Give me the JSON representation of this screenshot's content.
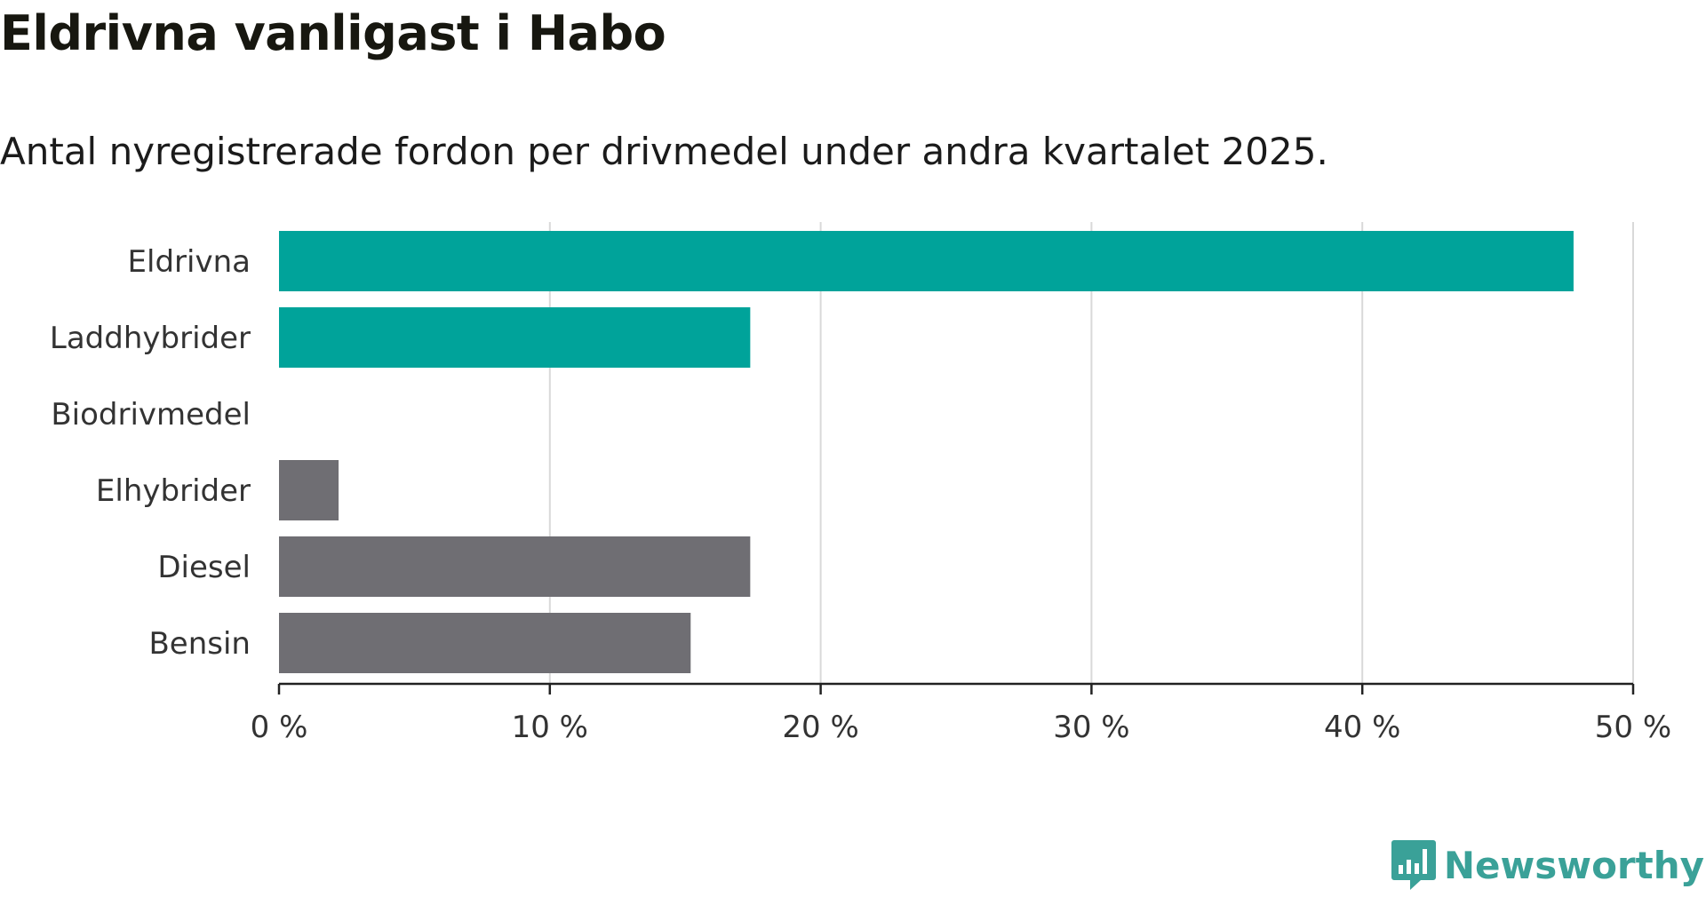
{
  "header": {
    "title": "Eldrivna vanligast i Habo",
    "subtitle": "Antal nyregistrerade fordon per drivmedel under andra kvartalet 2025."
  },
  "brand": {
    "name": "Newsworthy",
    "icon": "newsworthy-logo-icon",
    "color": "#3aa198"
  },
  "chart_data": {
    "type": "bar",
    "orientation": "horizontal",
    "title": "Eldrivna vanligast i Habo",
    "subtitle": "Antal nyregistrerade fordon per drivmedel under andra kvartalet 2025.",
    "xlabel": "",
    "ylabel": "",
    "categories": [
      "Eldrivna",
      "Laddhybrider",
      "Biodrivmedel",
      "Elhybrider",
      "Diesel",
      "Bensin"
    ],
    "values": [
      47.8,
      17.4,
      0,
      2.2,
      17.4,
      15.2
    ],
    "colors": [
      "#00a39a",
      "#00a39a",
      "#00a39a",
      "#6f6e73",
      "#6f6e73",
      "#6f6e73"
    ],
    "xlim": [
      0,
      50
    ],
    "ticks": [
      0,
      10,
      20,
      30,
      40,
      50
    ],
    "tick_labels": [
      "0 %",
      "10 %",
      "20 %",
      "30 %",
      "40 %",
      "50 %"
    ],
    "unit": "%",
    "grid": true,
    "legend": "none"
  }
}
